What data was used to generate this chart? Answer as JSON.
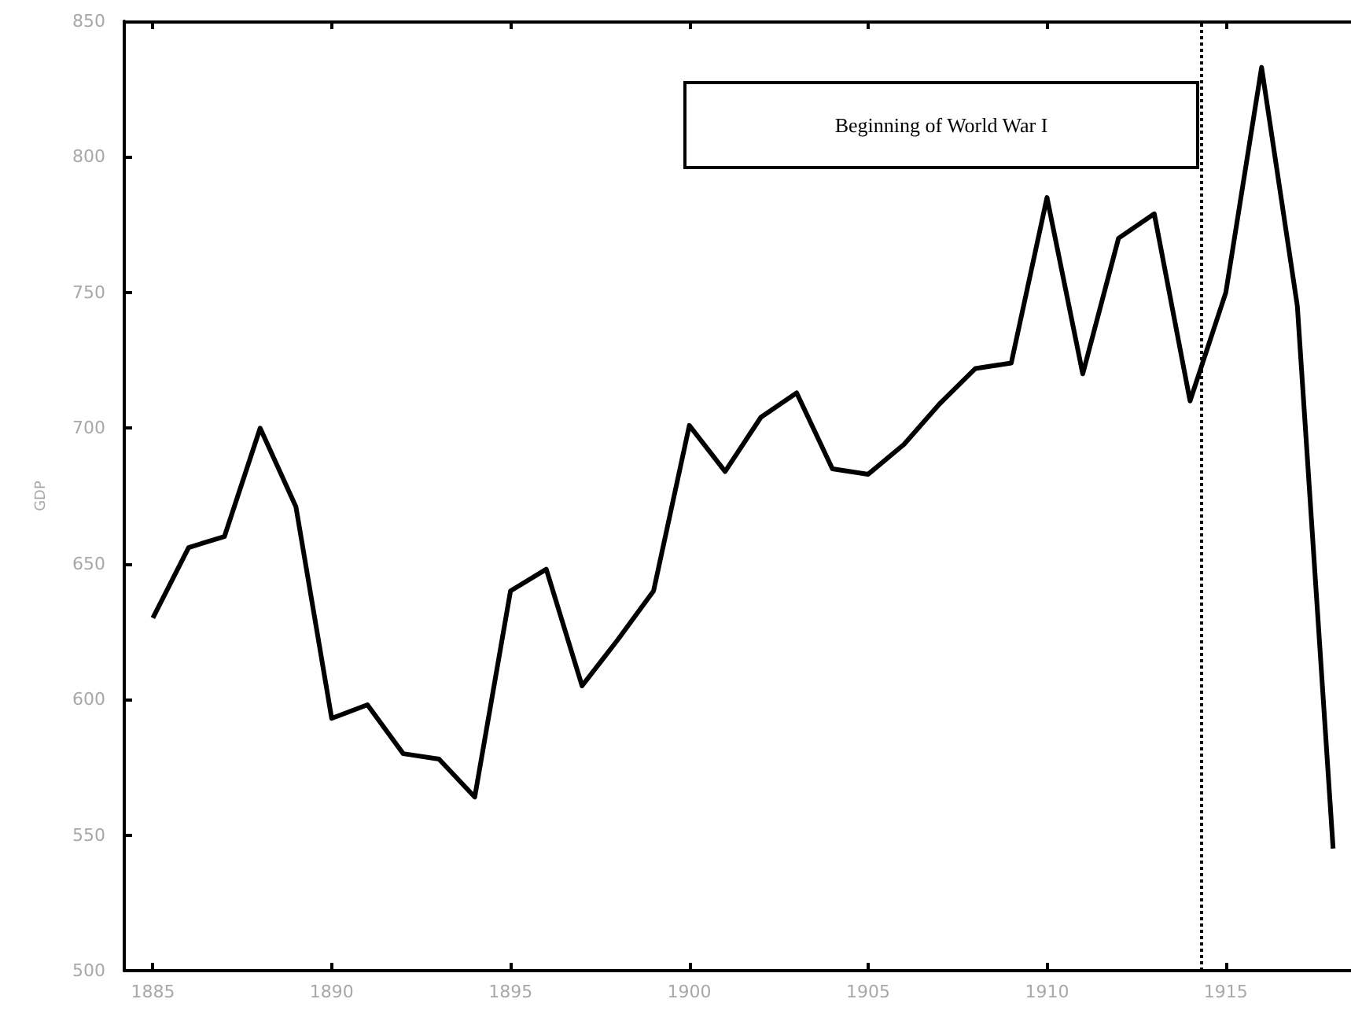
{
  "chart_data": {
    "type": "line",
    "ylabel": "GDP",
    "x": [
      1885,
      1886,
      1887,
      1888,
      1889,
      1890,
      1891,
      1892,
      1893,
      1894,
      1895,
      1896,
      1897,
      1898,
      1899,
      1900,
      1901,
      1902,
      1903,
      1904,
      1905,
      1906,
      1907,
      1908,
      1909,
      1910,
      1911,
      1912,
      1913,
      1914,
      1915,
      1916,
      1917,
      1918
    ],
    "series": [
      {
        "color": "#000000",
        "values": [
          630,
          656,
          660,
          700,
          671,
          593,
          598,
          580,
          578,
          564,
          640,
          648,
          605,
          622,
          640,
          701,
          684,
          704,
          713,
          685,
          683,
          694,
          709,
          722,
          724,
          785,
          720,
          770,
          779,
          710,
          750,
          833,
          745,
          545
        ]
      }
    ],
    "xlim": [
      1884.2,
      1918.5
    ],
    "xticks": [
      1885,
      1890,
      1895,
      1900,
      1905,
      1910,
      1915
    ],
    "ylim": [
      500,
      850
    ],
    "yticks": [
      500,
      550,
      600,
      650,
      700,
      750,
      800,
      850
    ],
    "ref_lines": [
      {
        "axis": "x",
        "value": 1914.3,
        "label": "Beginning of World War I",
        "color": "#000000",
        "line_style": "dotted"
      }
    ],
    "grid": false,
    "marker": "none",
    "line_style": "solid"
  }
}
